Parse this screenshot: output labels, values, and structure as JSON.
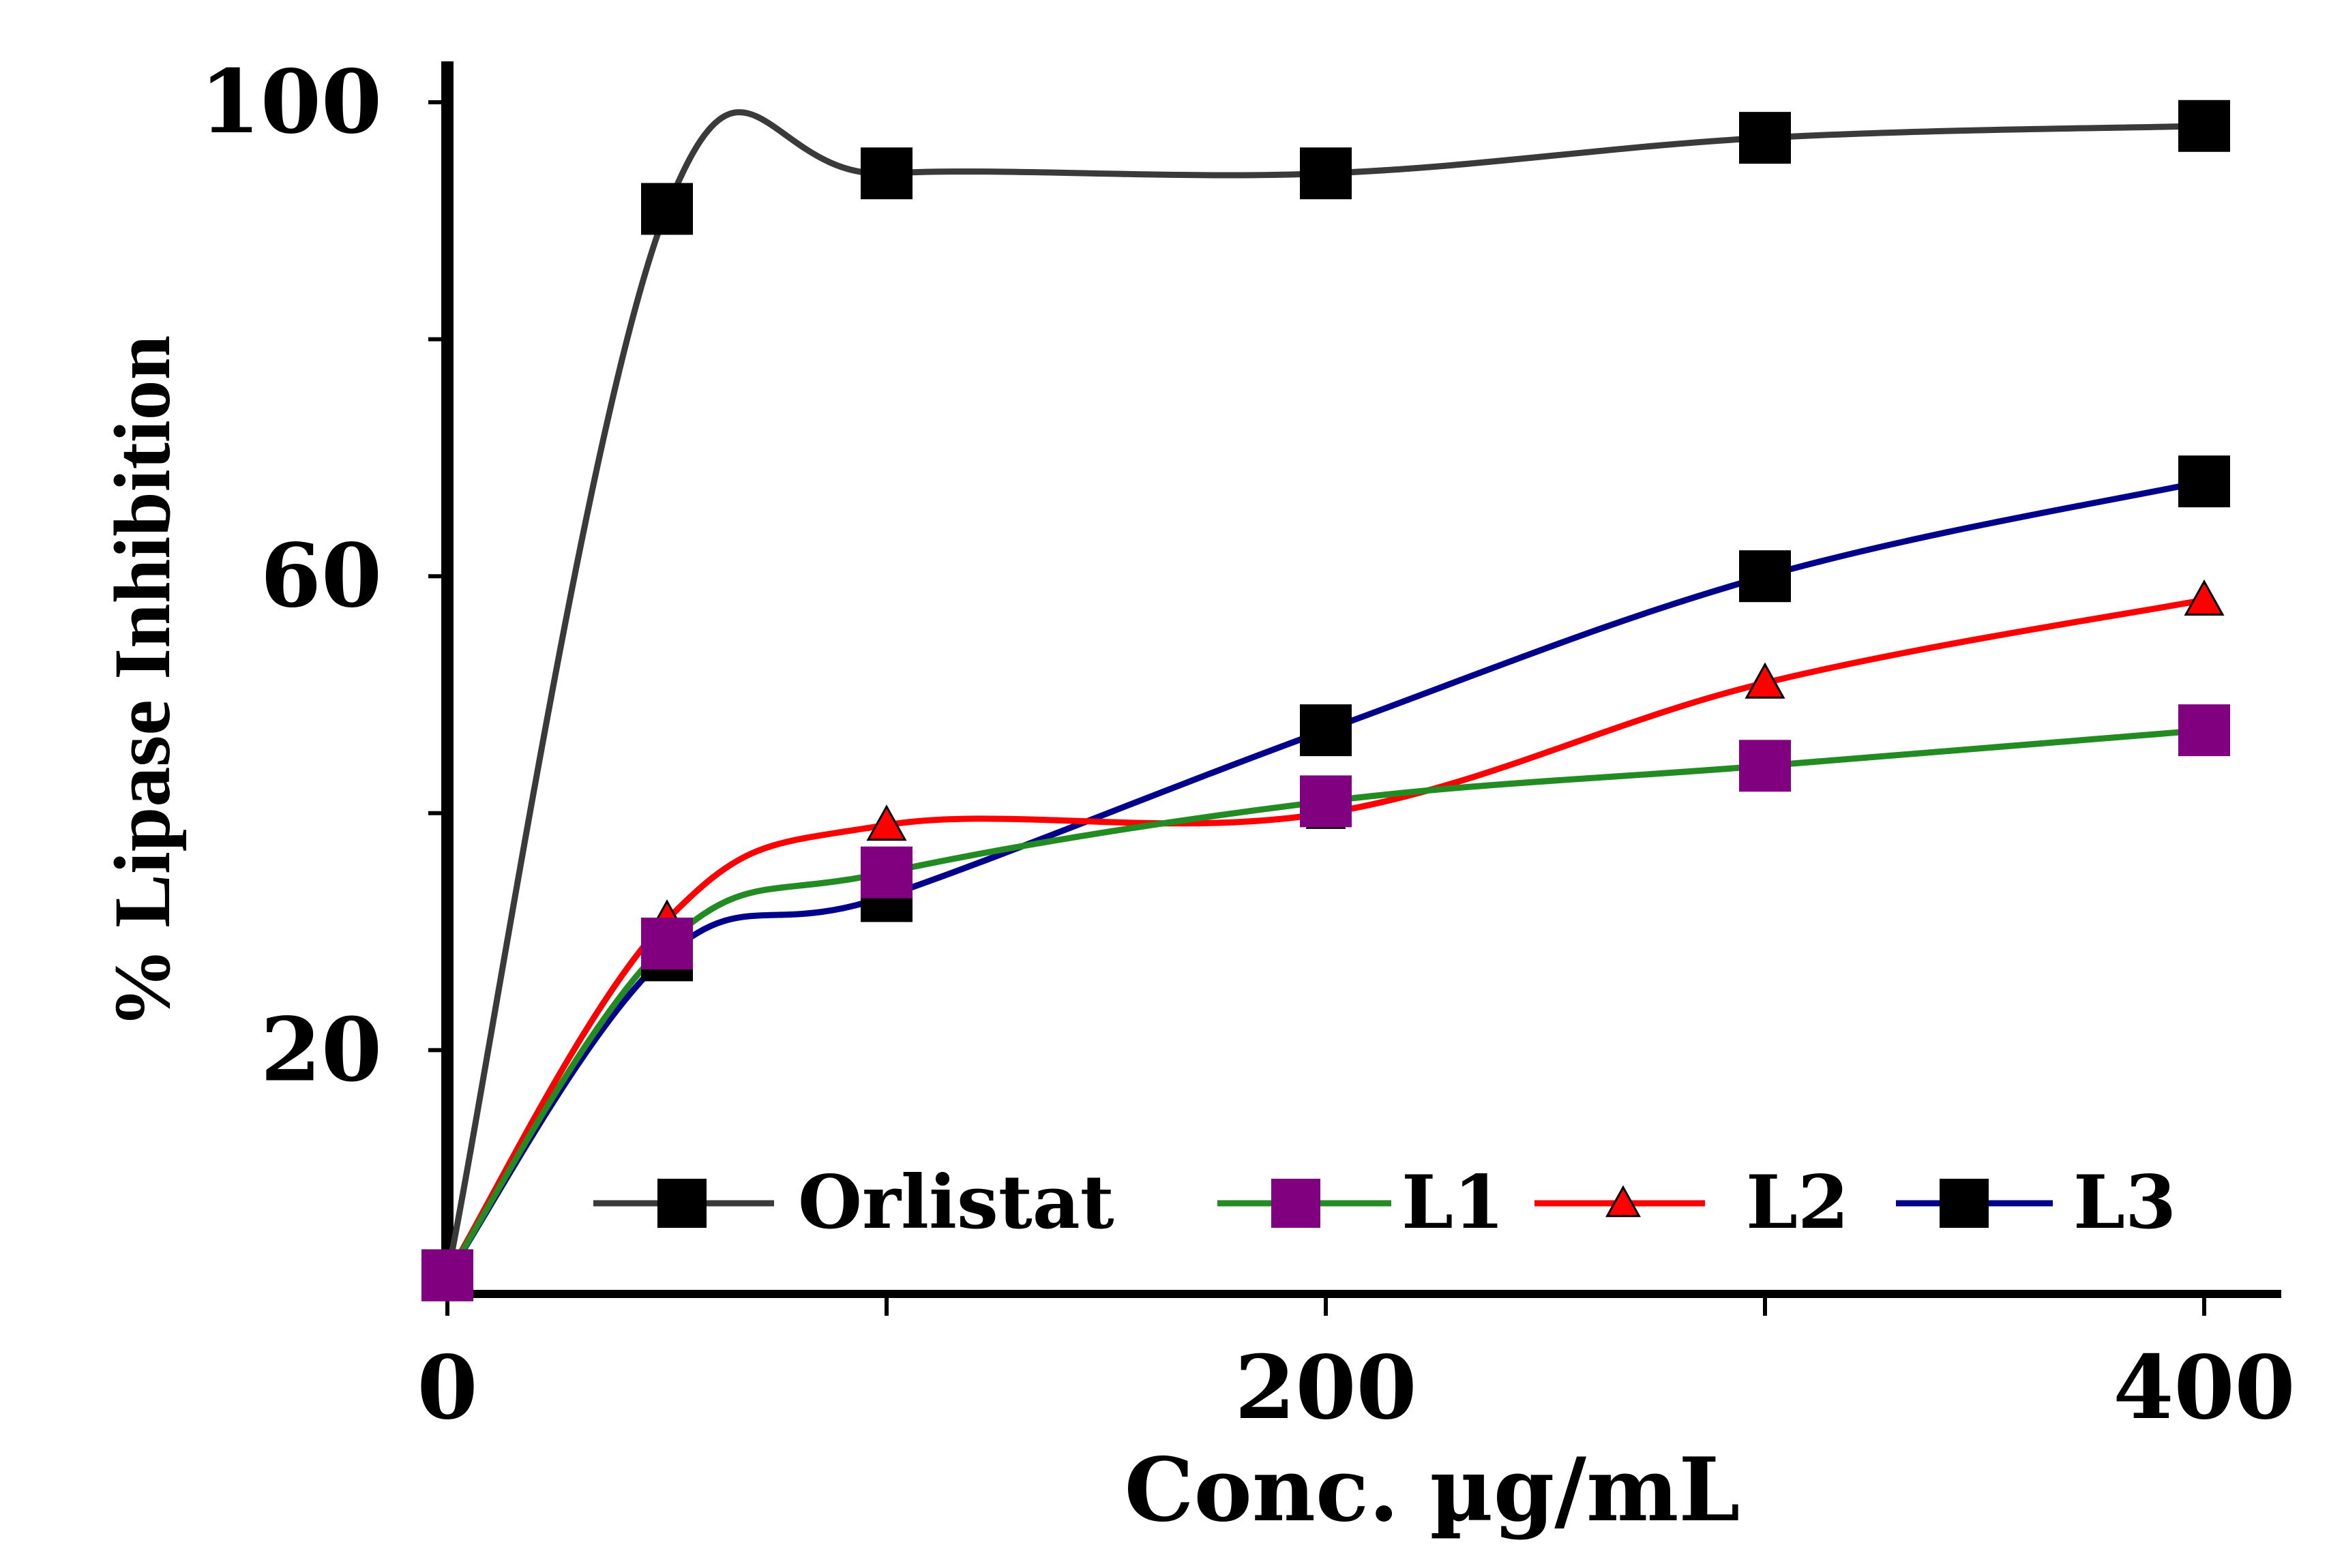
{
  "chart_data": {
    "type": "line",
    "title": "",
    "xlabel": "Conc.  µg/mL",
    "ylabel": "% Lipase Inhibition",
    "xlim": [
      0,
      400
    ],
    "ylim": [
      0,
      100
    ],
    "x_ticks": [
      0,
      200,
      400
    ],
    "x_ticks_minor": [
      100,
      300
    ],
    "y_ticks": [
      20,
      60,
      100
    ],
    "y_ticks_minor": [
      40,
      80
    ],
    "grid": false,
    "legend_position": "bottom-center",
    "x": [
      0,
      50,
      100,
      200,
      300,
      400
    ],
    "series": [
      {
        "name": "Orlistat",
        "values": [
          1,
          91,
          94,
          94,
          97,
          98
        ],
        "color": "#3a3a3a",
        "marker": "square",
        "marker_color": "#000000"
      },
      {
        "name": "L1",
        "values": [
          1,
          29,
          35,
          41,
          44,
          47
        ],
        "color": "#228b22",
        "marker": "square",
        "marker_color": "#800080"
      },
      {
        "name": "L2",
        "values": [
          1,
          31,
          39,
          40,
          51,
          58
        ],
        "color": "#ff0000",
        "marker": "triangle",
        "marker_color": "#ff0000"
      },
      {
        "name": "L3",
        "values": [
          1,
          28,
          33,
          47,
          60,
          68
        ],
        "color": "#00008b",
        "marker": "square",
        "marker_color": "#000000"
      }
    ]
  }
}
